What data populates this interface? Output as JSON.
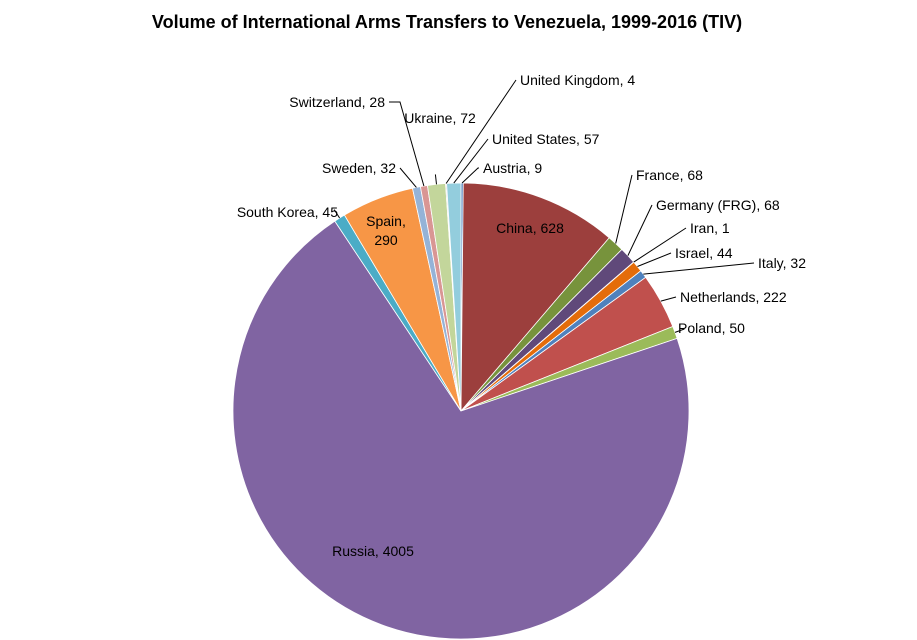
{
  "chart_data": {
    "type": "pie",
    "title": "Volume of International Arms Transfers to Venezuela, 1999-2016 (TIV)",
    "label_separator": ", ",
    "slices": [
      {
        "label": "Austria",
        "value": 9,
        "color": "#4F81BD"
      },
      {
        "label": "China",
        "value": 628,
        "color": "#9C3F3D"
      },
      {
        "label": "France",
        "value": 68,
        "color": "#77933C"
      },
      {
        "label": "Germany (FRG)",
        "value": 68,
        "color": "#60497A"
      },
      {
        "label": "Iran",
        "value": 1,
        "color": "#31859C"
      },
      {
        "label": "Israel",
        "value": 44,
        "color": "#E46C0A"
      },
      {
        "label": "Italy",
        "value": 32,
        "color": "#4F81BD"
      },
      {
        "label": "Netherlands",
        "value": 222,
        "color": "#C0504D"
      },
      {
        "label": "Poland",
        "value": 50,
        "color": "#9BBB59"
      },
      {
        "label": "Russia",
        "value": 4005,
        "color": "#8064A2"
      },
      {
        "label": "South Korea",
        "value": 45,
        "color": "#4BACC6"
      },
      {
        "label": "Spain",
        "value": 290,
        "color": "#F79646"
      },
      {
        "label": "Sweden",
        "value": 32,
        "color": "#95B3D7"
      },
      {
        "label": "Switzerland",
        "value": 28,
        "color": "#D99694"
      },
      {
        "label": "Ukraine",
        "value": 72,
        "color": "#C3D69B"
      },
      {
        "label": "United Kingdom",
        "value": 4,
        "color": "#B3A2C7"
      },
      {
        "label": "United States",
        "value": 57,
        "color": "#93CDDD"
      }
    ]
  }
}
